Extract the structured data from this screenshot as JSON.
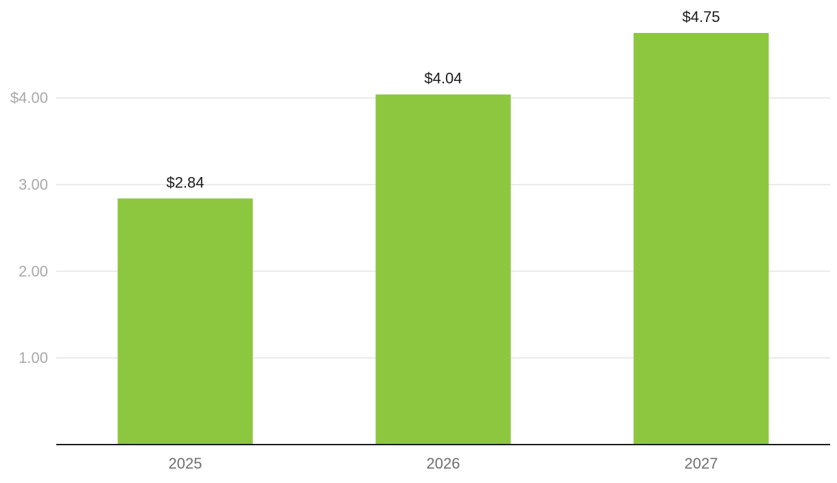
{
  "chart_data": {
    "type": "bar",
    "title": "",
    "xlabel": "",
    "ylabel": "",
    "categories": [
      "2025",
      "2026",
      "2027"
    ],
    "values": [
      2.84,
      4.04,
      4.75
    ],
    "data_labels": [
      "$2.84",
      "$4.04",
      "$4.75"
    ],
    "ylim": [
      0,
      4.75
    ],
    "y_ticks": [
      {
        "value": 1,
        "label": "1.00"
      },
      {
        "value": 2,
        "label": "2.00"
      },
      {
        "value": 3,
        "label": "3.00"
      },
      {
        "value": 4,
        "label": "$4.00"
      }
    ],
    "grid": true,
    "legend": "none",
    "colors": {
      "bar": "#8dc63f",
      "grid": "#e3e3e3",
      "axis": "#1a1a1a"
    }
  }
}
